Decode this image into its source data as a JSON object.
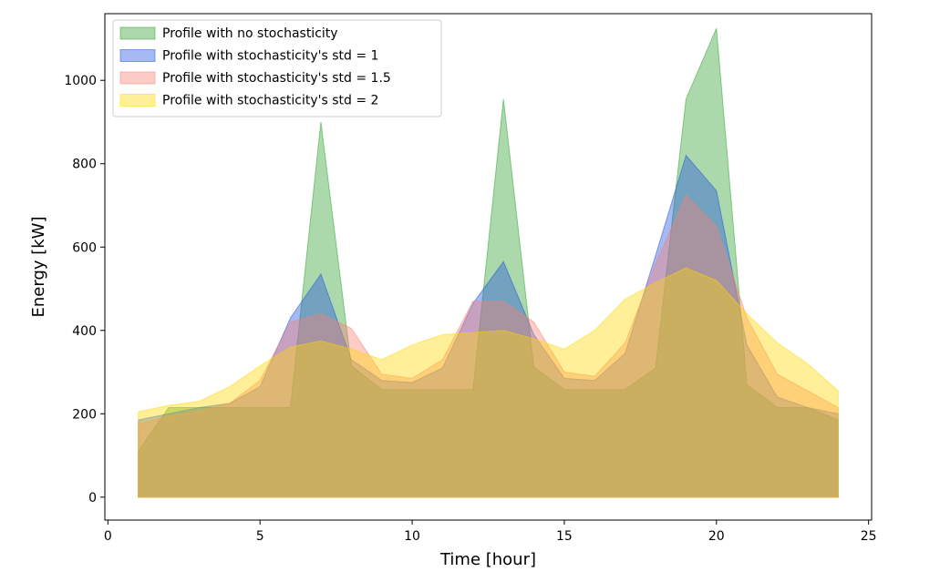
{
  "chart_data": {
    "type": "area",
    "title": "",
    "xlabel": "Time [hour]",
    "ylabel": "Energy [kW]",
    "xlim": [
      -0.1,
      25.1
    ],
    "ylim": [
      -55,
      1160
    ],
    "xticks": [
      0,
      5,
      10,
      15,
      20,
      25
    ],
    "yticks": [
      0,
      200,
      400,
      600,
      800,
      1000
    ],
    "grid": false,
    "legend_position": "top-left",
    "x": [
      1,
      2,
      3,
      4,
      5,
      6,
      7,
      8,
      9,
      10,
      11,
      12,
      13,
      14,
      15,
      16,
      17,
      18,
      19,
      20,
      21,
      22,
      23,
      24
    ],
    "series": [
      {
        "name": "Profile with no stochasticity",
        "color": "#2ca02c",
        "values": [
          110,
          215,
          215,
          215,
          215,
          215,
          900,
          315,
          258,
          258,
          258,
          258,
          955,
          312,
          258,
          258,
          258,
          310,
          955,
          1125,
          270,
          215,
          215,
          185
        ]
      },
      {
        "name": "Profile with stochasticity's std = 1",
        "color": "#1f4fe0",
        "values": [
          185,
          200,
          215,
          225,
          265,
          430,
          535,
          330,
          280,
          275,
          310,
          465,
          565,
          390,
          285,
          280,
          345,
          580,
          820,
          735,
          365,
          240,
          215,
          200
        ]
      },
      {
        "name": "Profile with stochasticity's std = 1.5",
        "color": "#fa8072",
        "values": [
          175,
          195,
          205,
          225,
          280,
          420,
          440,
          405,
          295,
          285,
          330,
          470,
          470,
          420,
          300,
          290,
          370,
          560,
          725,
          650,
          430,
          295,
          255,
          215
        ]
      },
      {
        "name": "Profile with stochasticity's std = 2",
        "color": "#ffd700",
        "values": [
          205,
          220,
          230,
          265,
          315,
          360,
          375,
          355,
          330,
          365,
          390,
          395,
          400,
          380,
          355,
          400,
          475,
          515,
          550,
          520,
          440,
          370,
          320,
          255
        ]
      }
    ]
  }
}
